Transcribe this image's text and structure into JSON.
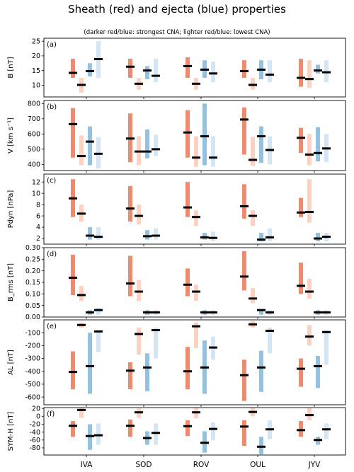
{
  "figure": {
    "title": "Sheath (red) and ejecta (blue) properties",
    "subtitle": "(darker red/blue: strongest CNA; lighter red/blue: lowest CNA)"
  },
  "colors": {
    "sheath_strong": "#f08a6e",
    "sheath_weak": "#fbd2c2",
    "ejecta_strong": "#93c2e0",
    "ejecta_weak": "#d4e5f3",
    "median": "#000000"
  },
  "chart_data": [
    {
      "type": "bar",
      "panel_label": "(a)",
      "ylabel": "B [nT]",
      "ylim": [
        6,
        26
      ],
      "yticks": [
        10,
        15,
        20,
        25
      ],
      "categories": [
        "IVA",
        "SOD",
        "ROV",
        "OUL",
        "JYV"
      ],
      "series": [
        {
          "range_low": [
            12.5,
            12.5,
            12.5,
            12.5,
            9.5
          ],
          "range_high": [
            19,
            19,
            19.5,
            18.5,
            19
          ],
          "median": [
            14.2,
            16.3,
            16.5,
            14.8,
            12.5
          ]
        },
        {
          "range_low": [
            7.5,
            8.5,
            8.5,
            8.5,
            9
          ],
          "range_high": [
            12.5,
            12.5,
            12.5,
            12.5,
            18.5
          ],
          "median": [
            10.1,
            10.5,
            10.5,
            10.1,
            12.1
          ]
        },
        {
          "range_low": [
            13,
            12,
            12.5,
            12,
            14
          ],
          "range_high": [
            17.5,
            16.5,
            18.5,
            18.5,
            17
          ],
          "median": [
            14.8,
            15.0,
            15.3,
            15.3,
            15.0
          ]
        },
        {
          "range_low": [
            12.5,
            11,
            11,
            11,
            11
          ],
          "range_high": [
            25,
            19,
            18,
            18.5,
            18.5
          ],
          "median": [
            18.9,
            13.2,
            14.0,
            13.6,
            14.4
          ]
        }
      ]
    },
    {
      "type": "bar",
      "panel_label": "(b)",
      "ylabel": "V [km s⁻¹]",
      "ylim": [
        360,
        820
      ],
      "yticks": [
        400,
        500,
        600,
        700,
        800
      ],
      "categories": [
        "IVA",
        "SOD",
        "ROV",
        "OUL",
        "JYV"
      ],
      "series": [
        {
          "range_low": [
            445,
            415,
            445,
            465,
            475
          ],
          "range_high": [
            770,
            735,
            755,
            775,
            640
          ],
          "median": [
            665,
            570,
            610,
            695,
            575
          ]
        },
        {
          "range_low": [
            395,
            395,
            385,
            390,
            395
          ],
          "range_high": [
            590,
            585,
            585,
            580,
            600
          ],
          "median": [
            455,
            485,
            445,
            430,
            465
          ]
        },
        {
          "range_low": [
            395,
            440,
            395,
            410,
            420
          ],
          "range_high": [
            650,
            630,
            800,
            650,
            645
          ],
          "median": [
            550,
            485,
            585,
            585,
            475
          ]
        },
        {
          "range_low": [
            375,
            455,
            385,
            400,
            415
          ],
          "range_high": [
            580,
            595,
            585,
            585,
            600
          ],
          "median": [
            470,
            500,
            445,
            495,
            505
          ]
        }
      ]
    },
    {
      "type": "bar",
      "panel_label": "(c)",
      "ylabel": "Pdyn [nPa]",
      "ylim": [
        1,
        13.4
      ],
      "yticks": [
        2,
        4,
        6,
        8,
        10,
        12
      ],
      "categories": [
        "IVA",
        "SOD",
        "ROV",
        "OUL",
        "JYV"
      ],
      "series": [
        {
          "range_low": [
            5.8,
            5.0,
            5.8,
            5.5,
            5.8
          ],
          "range_high": [
            12.5,
            11.3,
            12.0,
            11.6,
            9.2
          ],
          "median": [
            9.1,
            7.3,
            7.5,
            7.7,
            6.6
          ]
        },
        {
          "range_low": [
            5.0,
            4.5,
            4.2,
            4.2,
            4.8
          ],
          "range_high": [
            8.0,
            8.0,
            7.0,
            7.0,
            12.5
          ],
          "median": [
            6.4,
            6.0,
            5.8,
            6.0,
            6.7
          ]
        },
        {
          "range_low": [
            1.8,
            1.8,
            1.8,
            1.5,
            1.5
          ],
          "range_high": [
            4.0,
            3.5,
            3.0,
            3.0,
            3.0
          ],
          "median": [
            2.5,
            2.4,
            2.2,
            1.8,
            2.0
          ]
        },
        {
          "range_low": [
            1.8,
            1.8,
            1.5,
            1.5,
            1.5
          ],
          "range_high": [
            4.0,
            3.8,
            3.2,
            3.8,
            3.0
          ],
          "median": [
            2.3,
            2.5,
            2.1,
            2.2,
            2.3
          ]
        }
      ]
    },
    {
      "type": "bar",
      "panel_label": "(d)",
      "ylabel": "B_rms [nT]",
      "ylim": [
        0,
        0.3
      ],
      "yticks": [
        0.0,
        0.05,
        0.1,
        0.15,
        0.2,
        0.25,
        0.3
      ],
      "categories": [
        "IVA",
        "SOD",
        "ROV",
        "OUL",
        "JYV"
      ],
      "series": [
        {
          "range_low": [
            0.095,
            0.09,
            0.09,
            0.115,
            0.1
          ],
          "range_high": [
            0.27,
            0.265,
            0.21,
            0.285,
            0.235
          ],
          "median": [
            0.17,
            0.145,
            0.14,
            0.175,
            0.135
          ]
        },
        {
          "range_low": [
            0.07,
            0.07,
            0.07,
            0.06,
            0.08
          ],
          "range_high": [
            0.135,
            0.16,
            0.14,
            0.125,
            0.165
          ],
          "median": [
            0.095,
            0.11,
            0.11,
            0.08,
            0.11
          ]
        },
        {
          "range_low": [
            0.01,
            0.01,
            0.01,
            0.01,
            0.01
          ],
          "range_high": [
            0.03,
            0.03,
            0.03,
            0.03,
            0.03
          ],
          "median": [
            0.02,
            0.02,
            0.02,
            0.03,
            0.02
          ]
        },
        {
          "range_low": [
            0.01,
            0.01,
            0.01,
            0.01,
            0.01
          ],
          "range_high": [
            0.04,
            0.03,
            0.03,
            0.03,
            0.03
          ],
          "median": [
            0.03,
            0.02,
            0.02,
            0.02,
            0.02
          ]
        }
      ]
    },
    {
      "type": "bar",
      "panel_label": "(e)",
      "ylabel": "AL [nT]",
      "ylim": [
        -660,
        0
      ],
      "yticks": [
        -100,
        -200,
        -300,
        -400,
        -500,
        -600
      ],
      "categories": [
        "IVA",
        "SOD",
        "ROV",
        "OUL",
        "JYV"
      ],
      "series": [
        {
          "range_low": [
            -540,
            -540,
            -540,
            -630,
            -520
          ],
          "range_high": [
            -245,
            -330,
            -210,
            -310,
            -300
          ],
          "median": [
            -405,
            -395,
            -400,
            -430,
            -380
          ]
        },
        {
          "range_low": [
            -60,
            -270,
            -220,
            -60,
            -200
          ],
          "range_high": [
            -20,
            -60,
            -20,
            -10,
            -40
          ],
          "median": [
            -40,
            -110,
            -50,
            -35,
            -130
          ]
        },
        {
          "range_low": [
            -575,
            -555,
            -575,
            -560,
            -530
          ],
          "range_high": [
            -100,
            -260,
            -160,
            -240,
            -280
          ],
          "median": [
            -360,
            -370,
            -370,
            -370,
            -360
          ]
        },
        {
          "range_low": [
            -250,
            -300,
            -310,
            -260,
            -350
          ],
          "range_high": [
            -80,
            -60,
            -130,
            -60,
            -80
          ],
          "median": [
            -90,
            -80,
            -215,
            -85,
            -95
          ]
        }
      ]
    },
    {
      "type": "bar",
      "panel_label": "(f)",
      "ylabel": "SYM-H [nT]",
      "ylim": [
        -98,
        22
      ],
      "yticks": [
        -80,
        -60,
        -40,
        -20,
        0,
        20
      ],
      "categories": [
        "IVA",
        "SOD",
        "ROV",
        "OUL",
        "JYV"
      ],
      "series": [
        {
          "range_low": [
            -52,
            -52,
            -50,
            -75,
            -52
          ],
          "range_high": [
            -12,
            -8,
            -10,
            -10,
            -12
          ],
          "median": [
            -24,
            -24,
            -25,
            -26,
            -35
          ]
        },
        {
          "range_low": [
            -4,
            -4,
            -5,
            0,
            -10
          ],
          "range_high": [
            22,
            20,
            22,
            22,
            22
          ],
          "median": [
            16,
            10,
            10,
            11,
            3
          ]
        },
        {
          "range_low": [
            -85,
            -72,
            -92,
            -96,
            -72
          ],
          "range_high": [
            -20,
            -38,
            -38,
            -52,
            -52
          ],
          "median": [
            -50,
            -55,
            -67,
            -77,
            -60
          ]
        },
        {
          "range_low": [
            -72,
            -72,
            -60,
            -58,
            -58
          ],
          "range_high": [
            -18,
            -18,
            -15,
            -10,
            -18
          ],
          "median": [
            -48,
            -42,
            -32,
            -33,
            -33
          ]
        }
      ]
    }
  ]
}
